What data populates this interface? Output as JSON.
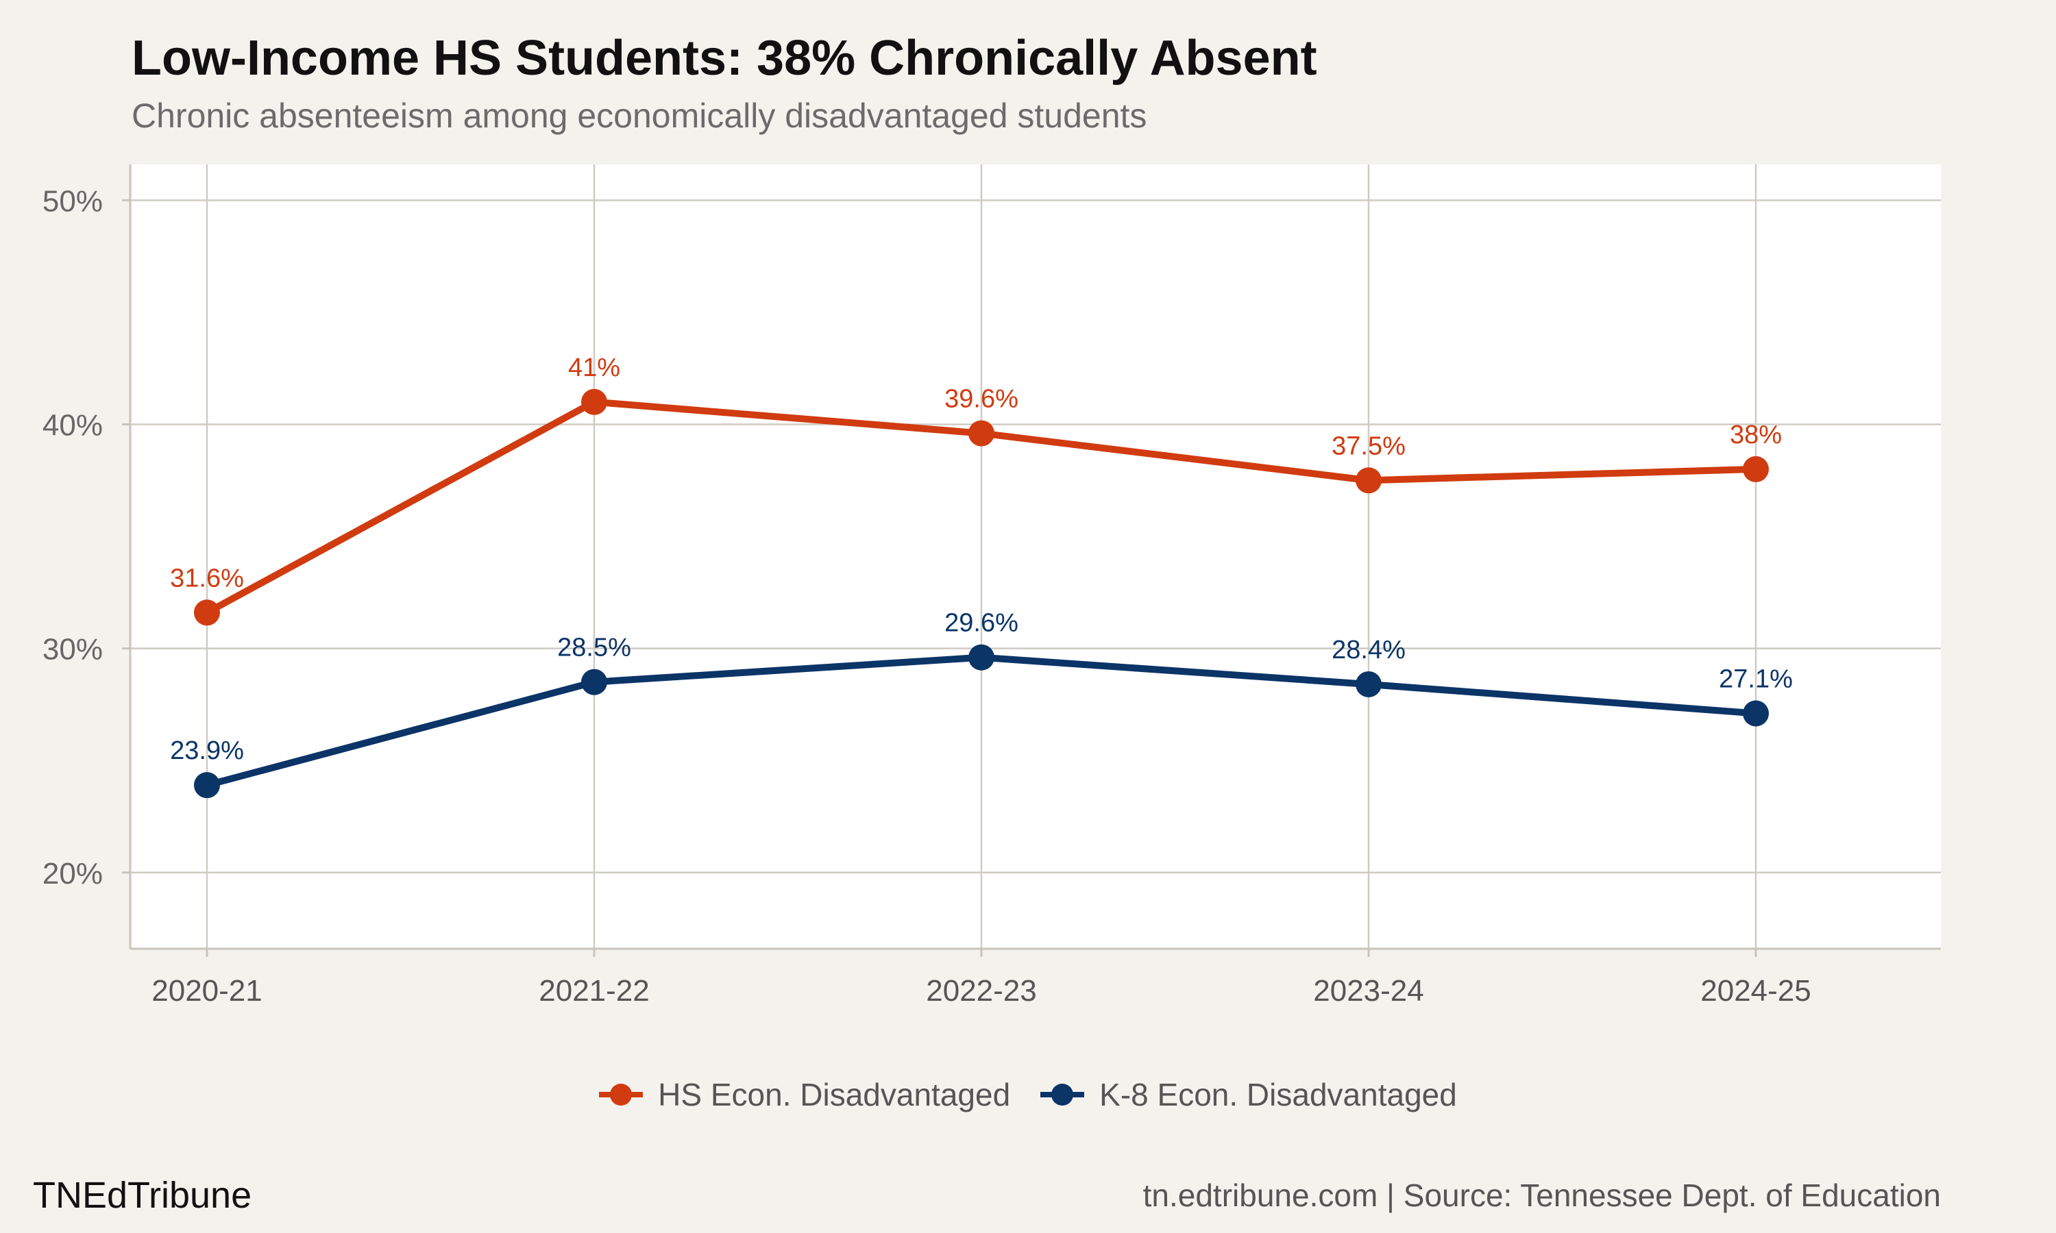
{
  "chart_data": {
    "type": "line",
    "title": "Low-Income HS Students: 38% Chronically Absent",
    "subtitle": "Chronic absenteeism among economically disadvantaged students",
    "xlabel": "",
    "ylabel": "",
    "categories": [
      "2020-21",
      "2021-22",
      "2022-23",
      "2023-24",
      "2024-25"
    ],
    "y_ticks": [
      20,
      30,
      40,
      50
    ],
    "y_tick_labels": [
      "20%",
      "30%",
      "40%",
      "50%"
    ],
    "ylim": [
      16.6,
      51.6
    ],
    "grid": true,
    "legend_position": "bottom",
    "series": [
      {
        "name": "HS Econ. Disadvantaged",
        "color": "#d03b10",
        "values": [
          31.6,
          41.0,
          39.6,
          37.5,
          38.0
        ],
        "labels": [
          "31.6%",
          "41%",
          "39.6%",
          "37.5%",
          "38%"
        ]
      },
      {
        "name": "K-8 Econ. Disadvantaged",
        "color": "#0b3467",
        "values": [
          23.9,
          28.5,
          29.6,
          28.4,
          27.1
        ],
        "labels": [
          "23.9%",
          "28.5%",
          "29.6%",
          "28.4%",
          "27.1%"
        ]
      }
    ]
  },
  "footer": {
    "brand": "TNEdTribune",
    "source": "tn.edtribune.com | Source: Tennessee Dept. of Education"
  }
}
